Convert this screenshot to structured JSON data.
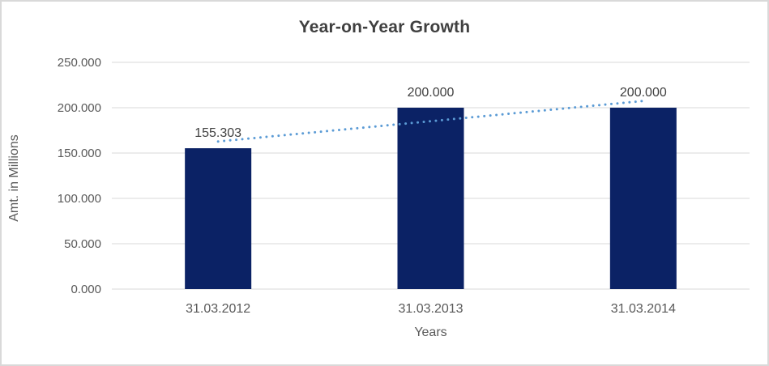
{
  "chart_data": {
    "type": "bar",
    "title": "Year-on-Year Growth",
    "xlabel": "Years",
    "ylabel": "Amt. in Millions",
    "categories": [
      "31.03.2012",
      "31.03.2013",
      "31.03.2014"
    ],
    "values": [
      155.303,
      200.0,
      200.0
    ],
    "data_labels": [
      "155.303",
      "200.000",
      "200.000"
    ],
    "y_ticks": [
      {
        "value": 0,
        "label": "0.000"
      },
      {
        "value": 50,
        "label": "50.000"
      },
      {
        "value": 100,
        "label": "100.000"
      },
      {
        "value": 150,
        "label": "150.000"
      },
      {
        "value": 200,
        "label": "200.000"
      },
      {
        "value": 250,
        "label": "250.000"
      }
    ],
    "ylim": [
      0,
      250
    ],
    "grid": true,
    "legend": "none",
    "trendline": {
      "type": "linear",
      "style": "dotted"
    },
    "colors": {
      "bar": "#0b2265",
      "trendline": "#5b9bd5",
      "gridline": "#d9d9d9",
      "title_text": "#404040",
      "axis_text": "#595959",
      "data_label_text": "#404040",
      "border": "#d9d9d9",
      "background": "#ffffff"
    }
  }
}
